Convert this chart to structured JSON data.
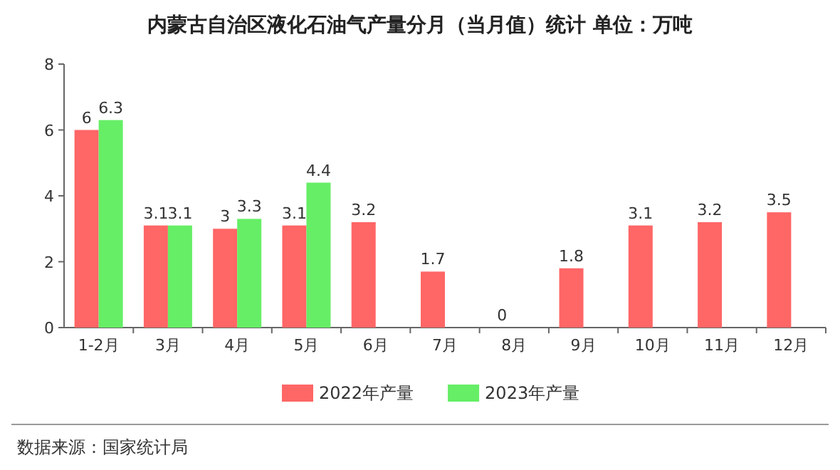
{
  "chart_data": {
    "type": "bar",
    "title": "内蒙古自治区液化石油气产量分月（当月值）统计 单位：万吨",
    "categories": [
      "1-2月",
      "3月",
      "4月",
      "5月",
      "6月",
      "7月",
      "8月",
      "9月",
      "10月",
      "11月",
      "12月"
    ],
    "series": [
      {
        "name": "2022年产量",
        "color": "#ff6666",
        "values": [
          6,
          3.1,
          3,
          3.1,
          3.2,
          1.7,
          0,
          1.8,
          3.1,
          3.2,
          3.5
        ]
      },
      {
        "name": "2023年产量",
        "color": "#66ee66",
        "values": [
          6.3,
          3.1,
          3.3,
          4.4,
          null,
          null,
          null,
          null,
          null,
          null,
          null
        ]
      }
    ],
    "ylim": [
      0,
      8
    ],
    "yticks": [
      0,
      2,
      4,
      6,
      8
    ],
    "data_labels": true,
    "legend": "bottom",
    "annotations": [
      "数据来源：国家统计局"
    ]
  }
}
